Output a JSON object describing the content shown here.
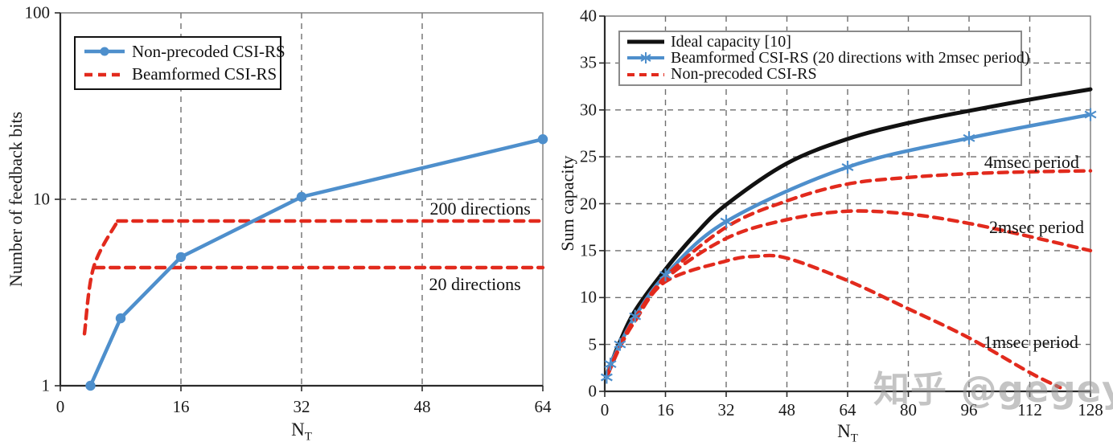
{
  "palette": {
    "blue": "#4e8fcc",
    "red": "#e22a1d",
    "black": "#111111",
    "grid": "#6f6f6f",
    "axis": "#2b2b2b",
    "border": "#7a7a7a",
    "watermark_gray": "#949494"
  },
  "watermark": {
    "text": "知乎 @gegey"
  },
  "chart_data": [
    {
      "id": "feedback-bits",
      "type": "line",
      "title": "",
      "xlabel": "N",
      "xlabel_sub": "T",
      "ylabel": "Number of feedback bits",
      "xlim": [
        0,
        64
      ],
      "ylim": [
        1,
        100
      ],
      "y_scale": "log",
      "x_ticks": [
        0,
        16,
        32,
        48,
        64
      ],
      "y_ticks": [
        1,
        10,
        100
      ],
      "grid_x": [
        16,
        32,
        48
      ],
      "grid_y": [
        10
      ],
      "legend": [
        {
          "label": "Non-precoded CSI-RS",
          "swatch": "blue-solid-circle"
        },
        {
          "label": "Beamformed CSI-RS",
          "swatch": "red-dashed"
        }
      ],
      "series": [
        {
          "name": "Beamformed CSI-RS (rise)",
          "color": "red",
          "style": "dashed",
          "smooth": true,
          "points": [
            [
              3.2,
              1.9
            ],
            [
              4.4,
              4.3
            ],
            [
              7.6,
              7.65
            ]
          ]
        },
        {
          "name": "Beamformed CSI-RS (200 directions)",
          "color": "red",
          "style": "dashed",
          "smooth": false,
          "points": [
            [
              7.6,
              7.65
            ],
            [
              64,
              7.65
            ]
          ]
        },
        {
          "name": "Beamformed CSI-RS (20 directions)",
          "color": "red",
          "style": "dashed",
          "smooth": false,
          "points": [
            [
              4.6,
              4.3
            ],
            [
              64,
              4.3
            ]
          ]
        },
        {
          "name": "Non-precoded CSI-RS",
          "color": "blue",
          "style": "solid",
          "marker": "circle",
          "smooth": false,
          "points": [
            [
              4,
              1
            ],
            [
              8,
              2.3
            ],
            [
              16,
              4.9
            ],
            [
              32,
              10.3
            ],
            [
              64,
              21
            ]
          ]
        }
      ],
      "annotations": [
        {
          "text": "200 directions",
          "x": 55.7,
          "y": 8.9
        },
        {
          "text": "20 directions",
          "x": 55.0,
          "y": 3.5
        }
      ]
    },
    {
      "id": "sum-capacity",
      "type": "line",
      "title": "",
      "xlabel": "N",
      "xlabel_sub": "T",
      "ylabel": "Sum capacity",
      "xlim": [
        0,
        128
      ],
      "ylim": [
        0,
        40
      ],
      "y_scale": "linear",
      "x_ticks": [
        0,
        16,
        32,
        48,
        64,
        80,
        96,
        112,
        128
      ],
      "y_ticks": [
        0,
        5,
        10,
        15,
        20,
        25,
        30,
        35,
        40
      ],
      "grid_x": [
        16,
        32,
        48,
        64,
        80,
        96,
        112
      ],
      "grid_y": [
        5,
        10,
        15,
        20,
        25,
        30,
        35
      ],
      "legend": [
        {
          "label": "Ideal capacity [10]",
          "swatch": "black-solid"
        },
        {
          "label": "Beamformed CSI-RS (20 directions with 2msec period)",
          "swatch": "blue-solid-asterisk"
        },
        {
          "label": "Non-precoded CSI-RS",
          "swatch": "red-dashed"
        }
      ],
      "series": [
        {
          "name": "Ideal capacity [10]",
          "color": "black",
          "style": "solid",
          "smooth": true,
          "points": [
            [
              0.5,
              1.8
            ],
            [
              2,
              3.3
            ],
            [
              4,
              5.3
            ],
            [
              8,
              8.6
            ],
            [
              16,
              13.0
            ],
            [
              24,
              16.8
            ],
            [
              32,
              19.9
            ],
            [
              48,
              24.3
            ],
            [
              64,
              26.9
            ],
            [
              80,
              28.6
            ],
            [
              96,
              29.9
            ],
            [
              112,
              31.1
            ],
            [
              128,
              32.2
            ]
          ]
        },
        {
          "name": "Beamformed CSI-RS (20 directions with 2msec period)",
          "color": "blue",
          "style": "solid",
          "marker": "asterisk",
          "smooth": true,
          "points": [
            [
              0.5,
              1.5
            ],
            [
              1.5,
              2.9
            ],
            [
              4,
              5.0
            ],
            [
              8,
              8.0
            ],
            [
              16,
              12.4
            ],
            [
              32,
              18.1
            ],
            [
              64,
              23.9
            ],
            [
              96,
              27.0
            ],
            [
              128,
              29.5
            ]
          ]
        },
        {
          "name": "Non-precoded CSI-RS (4msec period)",
          "color": "red",
          "style": "dashed",
          "smooth": true,
          "points": [
            [
              0.8,
              1.8
            ],
            [
              4,
              4.9
            ],
            [
              8,
              7.8
            ],
            [
              16,
              12.2
            ],
            [
              32,
              17.5
            ],
            [
              48,
              20.3
            ],
            [
              64,
              22.1
            ],
            [
              80,
              22.8
            ],
            [
              96,
              23.2
            ],
            [
              112,
              23.4
            ],
            [
              128,
              23.5
            ]
          ]
        },
        {
          "name": "Non-precoded CSI-RS (2msec period)",
          "color": "red",
          "style": "dashed",
          "smooth": true,
          "points": [
            [
              0.8,
              1.8
            ],
            [
              4,
              4.8
            ],
            [
              8,
              7.7
            ],
            [
              16,
              12.0
            ],
            [
              32,
              16.3
            ],
            [
              48,
              18.3
            ],
            [
              64,
              19.2
            ],
            [
              80,
              18.9
            ],
            [
              96,
              17.9
            ],
            [
              112,
              16.5
            ],
            [
              128,
              15.0
            ]
          ]
        },
        {
          "name": "Non-precoded CSI-RS (1msec period)",
          "color": "red",
          "style": "dashed",
          "smooth": true,
          "points": [
            [
              0.8,
              1.8
            ],
            [
              4,
              4.7
            ],
            [
              8,
              7.5
            ],
            [
              16,
              11.7
            ],
            [
              32,
              13.9
            ],
            [
              40,
              14.4
            ],
            [
              48,
              14.2
            ],
            [
              64,
              11.8
            ],
            [
              80,
              8.8
            ],
            [
              96,
              5.7
            ],
            [
              112,
              2.0
            ],
            [
              120,
              0.4
            ]
          ]
        }
      ],
      "annotations": [
        {
          "text": "4msec period",
          "x": 112.5,
          "y": 24.4
        },
        {
          "text": "2msec period",
          "x": 113.8,
          "y": 17.5
        },
        {
          "text": "1msec period",
          "x": 112.3,
          "y": 5.2
        }
      ]
    }
  ]
}
